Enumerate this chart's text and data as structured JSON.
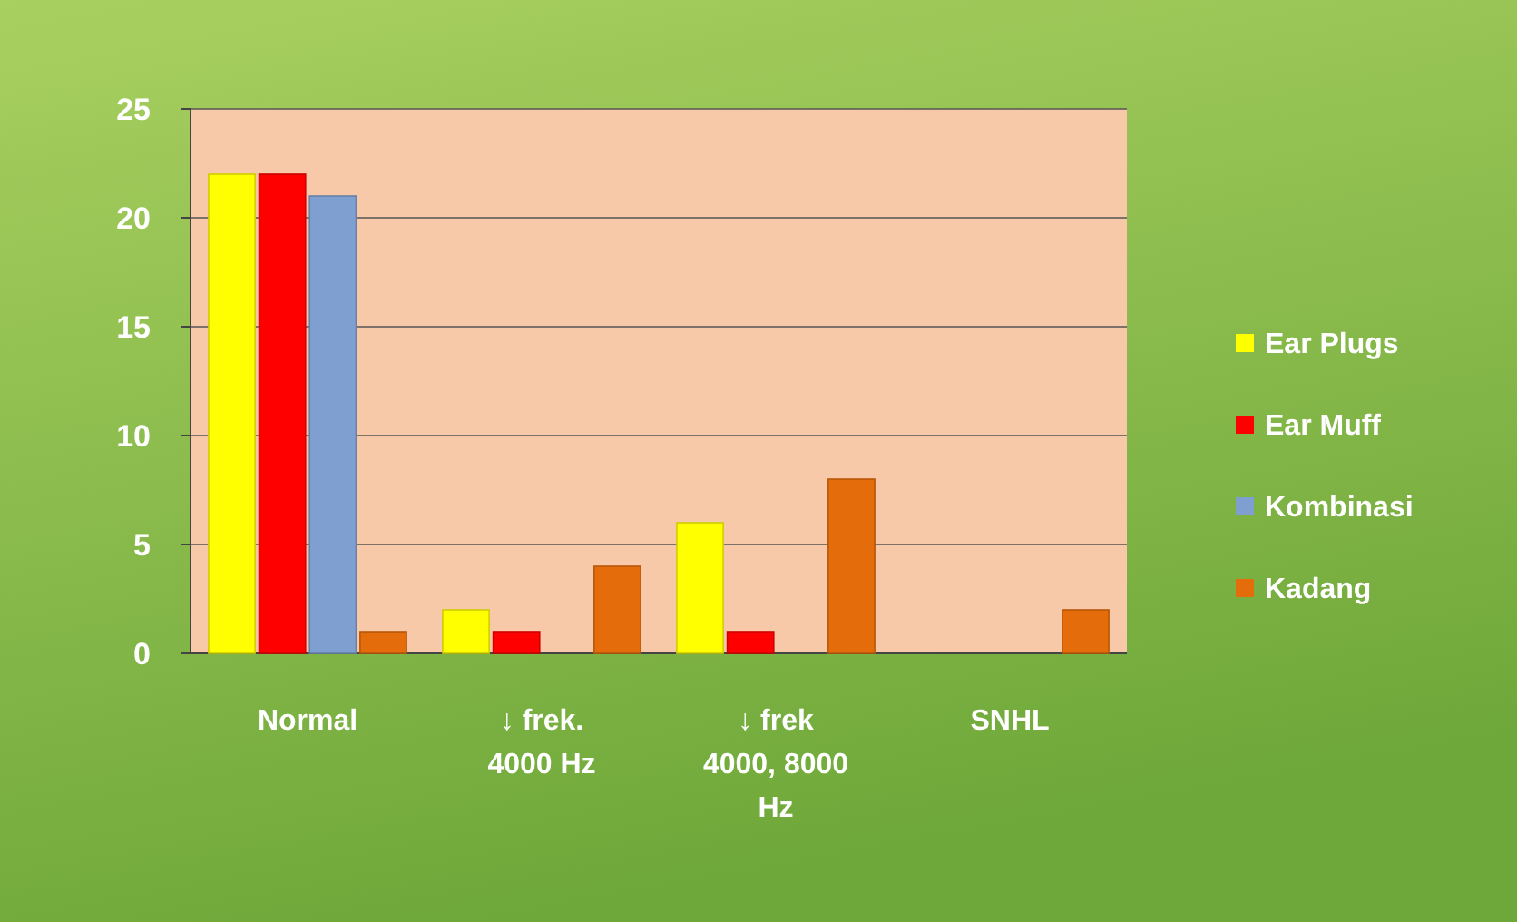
{
  "chart_data": {
    "type": "bar",
    "categories": [
      "Normal",
      "↓ frek. 4000 Hz",
      "↓ frek 4000, 8000 Hz",
      "SNHL"
    ],
    "series": [
      {
        "name": "Ear Plugs",
        "color": "#ffff00",
        "values": [
          22,
          2,
          6,
          0
        ]
      },
      {
        "name": "Ear Muff",
        "color": "#ff0000",
        "values": [
          22,
          1,
          1,
          0
        ]
      },
      {
        "name": "Kombinasi",
        "color": "#7f9fd0",
        "values": [
          21,
          0,
          0,
          0
        ]
      },
      {
        "name": "Kadang",
        "color": "#e46c0a",
        "values": [
          1,
          4,
          8,
          2
        ]
      }
    ],
    "ylim": [
      0,
      25
    ],
    "yticks": [
      0,
      5,
      10,
      15,
      20,
      25
    ],
    "grid": "y",
    "legend": "right"
  }
}
